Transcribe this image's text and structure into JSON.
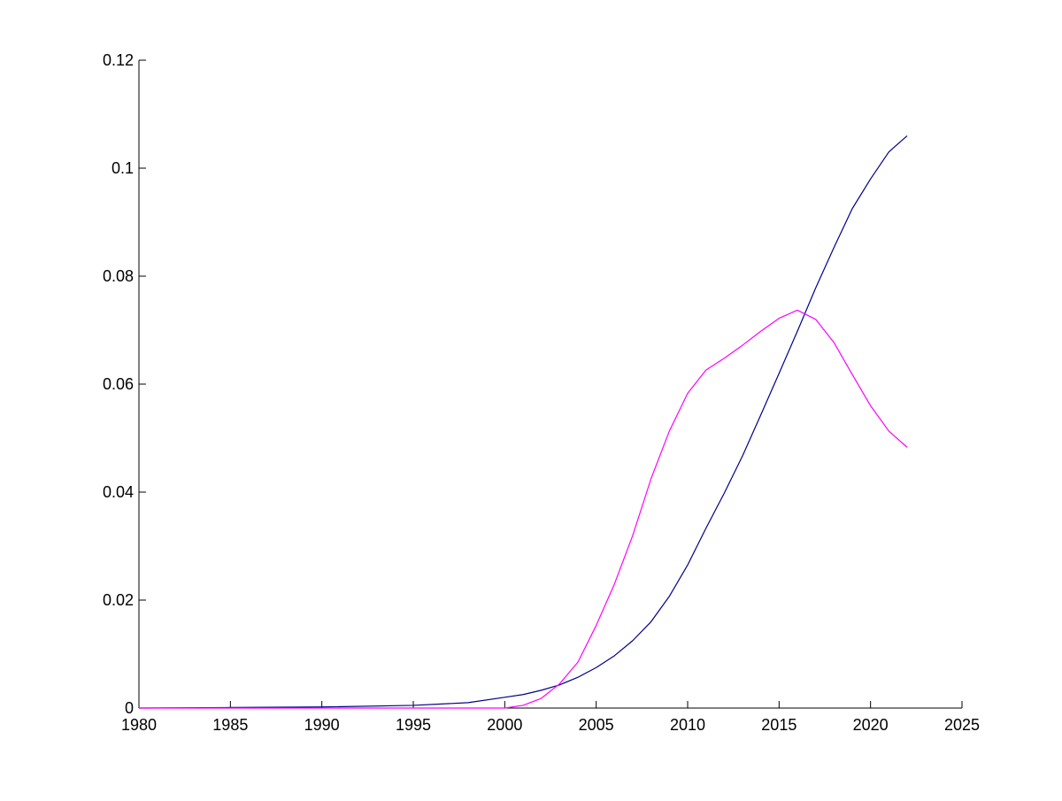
{
  "chart_data": {
    "type": "line",
    "title": "",
    "xlabel": "",
    "ylabel": "",
    "xlim": [
      1980,
      2025
    ],
    "ylim": [
      0,
      0.12
    ],
    "grid": false,
    "legend": "none",
    "x_ticks": [
      1980,
      1985,
      1990,
      1995,
      2000,
      2005,
      2010,
      2015,
      2020,
      2025
    ],
    "x_tick_labels": [
      "1980",
      "1985",
      "1990",
      "1995",
      "2000",
      "2005",
      "2010",
      "2015",
      "2020",
      "2025"
    ],
    "y_ticks": [
      0,
      0.02,
      0.04,
      0.06,
      0.08,
      0.1,
      0.12
    ],
    "y_tick_labels": [
      "0",
      "0.02",
      "0.04",
      "0.06",
      "0.08",
      "0.1",
      "0.12"
    ],
    "series": [
      {
        "color": "#00008b",
        "x": [
          1980,
          1985,
          1990,
          1995,
          1998,
          2000,
          2001,
          2002,
          2003,
          2004,
          2005,
          2006,
          2007,
          2008,
          2009,
          2010,
          2011,
          2012,
          2013,
          2014,
          2015,
          2016,
          2017,
          2018,
          2019,
          2020,
          2021,
          2022
        ],
        "y": [
          0,
          0.0001,
          0.0002,
          0.0005,
          0.001,
          0.002,
          0.0025,
          0.0033,
          0.0043,
          0.0057,
          0.0075,
          0.0097,
          0.0125,
          0.016,
          0.0207,
          0.0265,
          0.0333,
          0.0398,
          0.0467,
          0.0543,
          0.062,
          0.0698,
          0.0778,
          0.0853,
          0.0925,
          0.098,
          0.103,
          0.106
        ]
      },
      {
        "color": "#ff00ff",
        "x": [
          1980,
          1985,
          1990,
          1995,
          2000,
          2001,
          2002,
          2003,
          2004,
          2005,
          2006,
          2007,
          2008,
          2009,
          2010,
          2011,
          2012,
          2013,
          2014,
          2015,
          2016,
          2017,
          2018,
          2019,
          2020,
          2021,
          2022
        ],
        "y": [
          0,
          0,
          0,
          0,
          0,
          0.0005,
          0.0018,
          0.0045,
          0.0085,
          0.0153,
          0.023,
          0.032,
          0.0425,
          0.0513,
          0.0583,
          0.0626,
          0.0648,
          0.0672,
          0.0698,
          0.0722,
          0.0737,
          0.072,
          0.0677,
          0.0618,
          0.056,
          0.0513,
          0.0483
        ]
      }
    ]
  }
}
